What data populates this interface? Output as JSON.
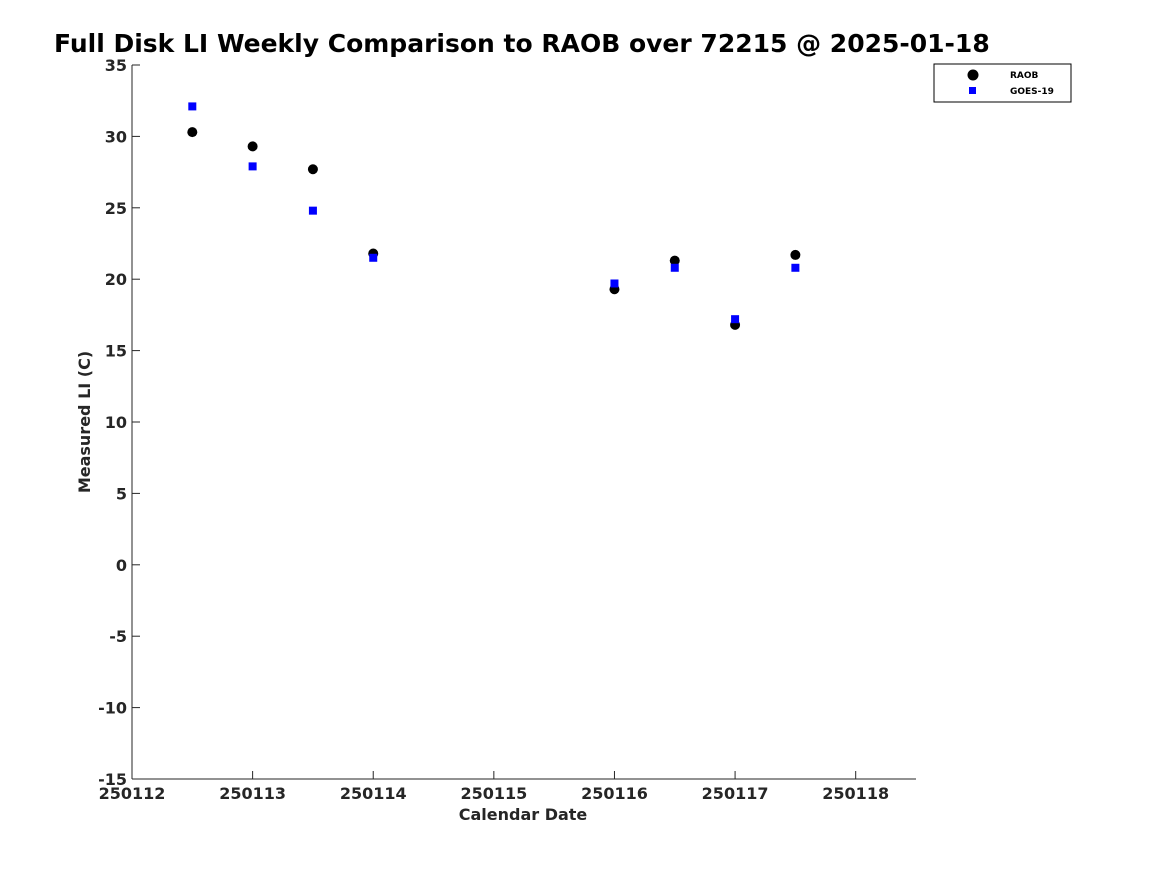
{
  "chart_data": {
    "type": "scatter",
    "title": "Full Disk LI Weekly Comparison to RAOB over 72215 @ 2025-01-18",
    "xlabel": "Calendar Date",
    "ylabel": "Measured LI (C)",
    "xlim": [
      250112,
      250118.5
    ],
    "ylim": [
      -15,
      35
    ],
    "x_ticks": [
      250112,
      250113,
      250114,
      250115,
      250116,
      250117,
      250118
    ],
    "x_tick_labels": [
      "250112",
      "250113",
      "250114",
      "250115",
      "250116",
      "250117",
      "250118"
    ],
    "y_ticks": [
      -15,
      -10,
      -5,
      0,
      5,
      10,
      15,
      20,
      25,
      30,
      35
    ],
    "y_tick_labels": [
      "-15",
      "-10",
      "-5",
      "0",
      "5",
      "10",
      "15",
      "20",
      "25",
      "30",
      "35"
    ],
    "grid": false,
    "legend_position": "top-right",
    "series": [
      {
        "name": "RAOB",
        "marker": "circle",
        "color": "#000000",
        "x": [
          250112.5,
          250113,
          250113.5,
          250114,
          250116,
          250116.5,
          250117,
          250117.5
        ],
        "y": [
          30.3,
          29.3,
          27.7,
          21.8,
          19.3,
          21.3,
          16.8,
          21.7
        ]
      },
      {
        "name": "GOES-19",
        "marker": "square",
        "color": "#0000ff",
        "x": [
          250112.5,
          250113,
          250113.5,
          250114,
          250116,
          250116.5,
          250117,
          250117.5
        ],
        "y": [
          32.1,
          27.9,
          24.8,
          21.5,
          19.7,
          20.8,
          17.2,
          20.8
        ]
      }
    ]
  }
}
